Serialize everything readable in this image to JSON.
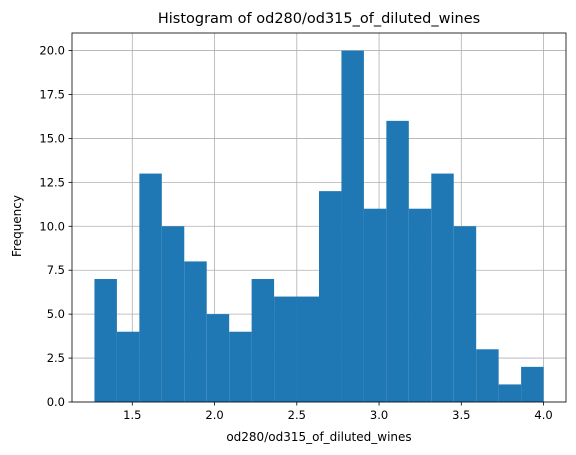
{
  "chart_data": {
    "type": "bar",
    "title": "Histogram of od280/od315_of_diluted_wines",
    "xlabel": "od280/od315_of_diluted_wines",
    "ylabel": "Frequency",
    "bin_edges": [
      1.27,
      1.4065,
      1.543,
      1.6795,
      1.816,
      1.9525,
      2.089,
      2.2255,
      2.362,
      2.4985,
      2.635,
      2.7715,
      2.908,
      3.0445,
      3.181,
      3.3175,
      3.454,
      3.5905,
      3.727,
      3.8635,
      4.0
    ],
    "values": [
      7,
      4,
      13,
      10,
      8,
      5,
      4,
      7,
      6,
      6,
      12,
      20,
      11,
      16,
      11,
      13,
      10,
      3,
      1,
      2
    ],
    "xlim": [
      1.1335,
      4.1365
    ],
    "ylim": [
      0,
      21
    ],
    "xticks": [
      1.5,
      2.0,
      2.5,
      3.0,
      3.5,
      4.0
    ],
    "xtick_labels": [
      "1.5",
      "2.0",
      "2.5",
      "3.0",
      "3.5",
      "4.0"
    ],
    "yticks": [
      0,
      2.5,
      5,
      7.5,
      10,
      12.5,
      15,
      17.5,
      20
    ],
    "ytick_labels": [
      "0.0",
      "2.5",
      "5.0",
      "7.5",
      "10.0",
      "12.5",
      "15.0",
      "17.5",
      "20.0"
    ],
    "bar_color": "#1f77b4",
    "grid": true,
    "grid_color": "#b0b0b0"
  }
}
